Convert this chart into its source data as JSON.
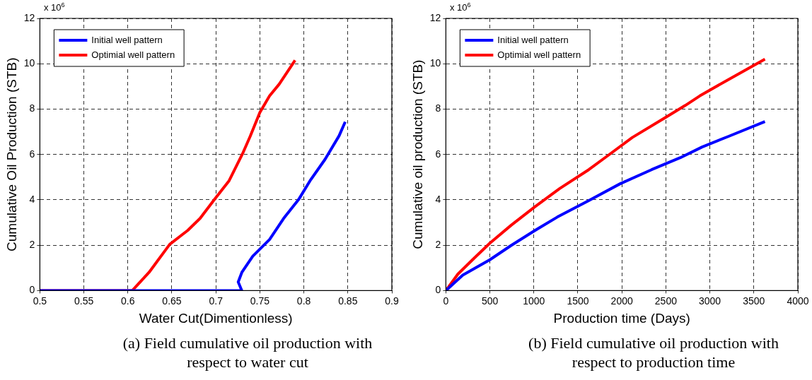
{
  "chart_data": [
    {
      "type": "line",
      "xlabel": "Water Cut(Dimentionless)",
      "ylabel": "Cumulative Oil Production (STB)",
      "xlim": [
        0.5,
        0.9
      ],
      "xticks": [
        0.5,
        0.55,
        0.6,
        0.65,
        0.7,
        0.75,
        0.8,
        0.85,
        0.9
      ],
      "ylim": [
        0,
        12
      ],
      "yticks": [
        0,
        2,
        4,
        6,
        8,
        10,
        12
      ],
      "grid": true,
      "legend": "top left",
      "marker": "none",
      "line_style": "solid",
      "annotations": [
        "x 10$^{6}$",
        "(a) Field cumulative oil production with respect to water cut"
      ],
      "series": [
        {
          "name": "Initial well pattern",
          "color": "#0000ff",
          "x": [
            0.5,
            0.7295,
            0.7254,
            0.7295,
            0.742,
            0.761,
            0.777,
            0.794,
            0.807,
            0.824,
            0.84,
            0.847
          ],
          "values": [
            0,
            0,
            0.38,
            0.8,
            1.52,
            2.25,
            3.18,
            4.01,
            4.84,
            5.78,
            6.82,
            7.44
          ]
        },
        {
          "name": "Optimial well pattern",
          "color": "#ff0000",
          "x": [
            0.5,
            0.605,
            0.624,
            0.6476,
            0.668,
            0.682,
            0.698,
            0.715,
            0.731,
            0.739,
            0.75,
            0.761,
            0.772,
            0.79
          ],
          "values": [
            0,
            0,
            0.8,
            2.04,
            2.65,
            3.18,
            4.0,
            4.84,
            6.09,
            6.8,
            7.85,
            8.58,
            9.1,
            10.15
          ]
        }
      ]
    },
    {
      "type": "line",
      "xlabel": "Production time (Days)",
      "ylabel": "Cumulative oil production (STB)",
      "xlim": [
        0,
        4000
      ],
      "xticks": [
        0,
        500,
        1000,
        1500,
        2000,
        2500,
        3000,
        3500,
        4000
      ],
      "ylim": [
        0,
        12
      ],
      "yticks": [
        0,
        2,
        4,
        6,
        8,
        10,
        12
      ],
      "grid": true,
      "legend": "top left",
      "marker": "none",
      "line_style": "solid",
      "annotations": [
        "x 10$^{6}$",
        "(b) Field cumulative oil production with respect to production time"
      ],
      "series": [
        {
          "name": "Initial well pattern",
          "color": "#0000ff",
          "x": [
            0,
            192,
            500,
            742,
            1000,
            1266,
            1624,
            1981,
            2338,
            2665,
            2912,
            3214,
            3626
          ],
          "values": [
            0,
            0.68,
            1.36,
            1.99,
            2.62,
            3.24,
            3.97,
            4.71,
            5.33,
            5.86,
            6.33,
            6.8,
            7.45
          ]
        },
        {
          "name": "Optimial well pattern",
          "color": "#ff0000",
          "x": [
            0,
            137,
            330,
            500,
            742,
            1000,
            1294,
            1624,
            1844,
            2119,
            2500,
            2720,
            2885,
            3214,
            3626
          ],
          "values": [
            0,
            0.73,
            1.46,
            2.09,
            2.88,
            3.66,
            4.5,
            5.33,
            5.96,
            6.75,
            7.64,
            8.16,
            8.58,
            9.31,
            10.2
          ]
        }
      ]
    }
  ]
}
